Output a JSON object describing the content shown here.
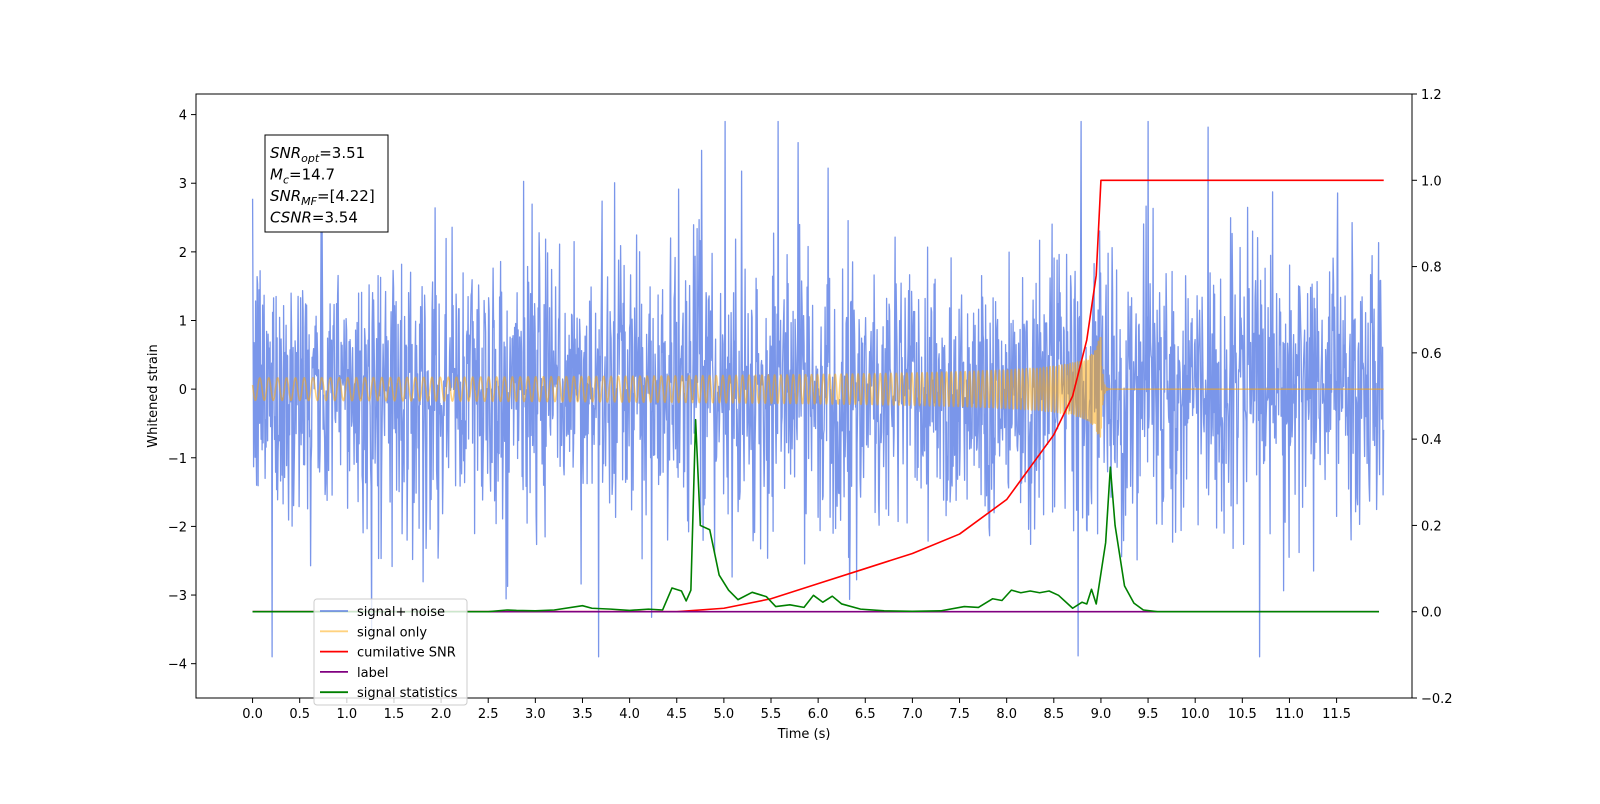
{
  "chart_data": {
    "type": "line",
    "xlabel": "Time (s)",
    "ylabel": "Whitened strain",
    "xlim": [
      -0.6,
      12.3
    ],
    "ylim": [
      -4.5,
      4.3
    ],
    "y2lim": [
      -0.2,
      1.2
    ],
    "x_ticks": [
      "0.0",
      "0.5",
      "1.0",
      "1.5",
      "2.0",
      "2.5",
      "3.0",
      "3.5",
      "4.0",
      "4.5",
      "5.0",
      "5.5",
      "6.0",
      "6.5",
      "7.0",
      "7.5",
      "8.0",
      "8.5",
      "9.0",
      "9.5",
      "10.0",
      "10.5",
      "11.0",
      "11.5"
    ],
    "y_ticks": [
      "4",
      "3",
      "2",
      "1",
      "0",
      "−1",
      "−2",
      "−3",
      "−4"
    ],
    "y2_ticks": [
      "1.2",
      "1.0",
      "0.8",
      "0.6",
      "0.4",
      "0.2",
      "0.0",
      "−0.2"
    ],
    "grid": false,
    "legend_position": "lower-left",
    "annotation": {
      "lines": [
        {
          "main": "SNR",
          "sub": "opt",
          "rest": "=3.51"
        },
        {
          "main": "M",
          "sub": "c",
          "rest": "=14.7"
        },
        {
          "main": "SNR",
          "sub": "MF",
          "rest": "=[4.22]"
        },
        {
          "main": "CSNR",
          "sub": "",
          "rest": "=3.54"
        }
      ]
    },
    "series": [
      {
        "name": "signal+ noise",
        "color": "#4169e1",
        "alpha": 0.7,
        "kind": "noise",
        "x_range": [
          0,
          12
        ],
        "std": 1.0,
        "y_range": [
          -3.9,
          3.9
        ]
      },
      {
        "name": "signal only",
        "color": "#ffa500",
        "alpha": 0.5,
        "kind": "chirp",
        "x_range": [
          0,
          12
        ],
        "merger_x": 9.0,
        "peak_amplitude": 0.75
      },
      {
        "name": "cumilative SNR",
        "color": "#ff0000",
        "axis": "right",
        "points": [
          [
            0,
            0
          ],
          [
            4.5,
            0
          ],
          [
            5.0,
            0.008
          ],
          [
            5.5,
            0.03
          ],
          [
            6.0,
            0.065
          ],
          [
            6.5,
            0.1
          ],
          [
            7.0,
            0.135
          ],
          [
            7.5,
            0.18
          ],
          [
            8.0,
            0.26
          ],
          [
            8.5,
            0.41
          ],
          [
            8.7,
            0.5
          ],
          [
            8.85,
            0.63
          ],
          [
            8.95,
            0.78
          ],
          [
            9.0,
            1.0
          ],
          [
            12,
            1.0
          ]
        ]
      },
      {
        "name": "label",
        "color": "#800080",
        "axis": "right",
        "points": [
          [
            0,
            0
          ],
          [
            11.95,
            0
          ]
        ]
      },
      {
        "name": "signal statistics",
        "color": "#008000",
        "axis": "right",
        "points": [
          [
            0,
            0
          ],
          [
            2.5,
            0
          ],
          [
            2.7,
            0.004
          ],
          [
            2.8,
            0.003
          ],
          [
            3.0,
            0.002
          ],
          [
            3.2,
            0.004
          ],
          [
            3.5,
            0.014
          ],
          [
            3.6,
            0.008
          ],
          [
            3.8,
            0.006
          ],
          [
            4.0,
            0.003
          ],
          [
            4.2,
            0.006
          ],
          [
            4.35,
            0.004
          ],
          [
            4.45,
            0.055
          ],
          [
            4.55,
            0.048
          ],
          [
            4.6,
            0.025
          ],
          [
            4.65,
            0.05
          ],
          [
            4.7,
            0.445
          ],
          [
            4.75,
            0.2
          ],
          [
            4.85,
            0.19
          ],
          [
            4.95,
            0.085
          ],
          [
            5.05,
            0.05
          ],
          [
            5.15,
            0.028
          ],
          [
            5.3,
            0.045
          ],
          [
            5.45,
            0.035
          ],
          [
            5.55,
            0.012
          ],
          [
            5.7,
            0.016
          ],
          [
            5.85,
            0.01
          ],
          [
            5.95,
            0.038
          ],
          [
            6.05,
            0.022
          ],
          [
            6.15,
            0.036
          ],
          [
            6.25,
            0.018
          ],
          [
            6.45,
            0.006
          ],
          [
            6.7,
            0.002
          ],
          [
            7.0,
            0.001
          ],
          [
            7.3,
            0.002
          ],
          [
            7.55,
            0.012
          ],
          [
            7.7,
            0.01
          ],
          [
            7.85,
            0.03
          ],
          [
            7.95,
            0.026
          ],
          [
            8.05,
            0.05
          ],
          [
            8.15,
            0.044
          ],
          [
            8.25,
            0.048
          ],
          [
            8.35,
            0.044
          ],
          [
            8.45,
            0.048
          ],
          [
            8.55,
            0.038
          ],
          [
            8.7,
            0.008
          ],
          [
            8.8,
            0.022
          ],
          [
            8.85,
            0.018
          ],
          [
            8.9,
            0.052
          ],
          [
            8.95,
            0.018
          ],
          [
            9.05,
            0.16
          ],
          [
            9.1,
            0.335
          ],
          [
            9.15,
            0.2
          ],
          [
            9.25,
            0.06
          ],
          [
            9.35,
            0.02
          ],
          [
            9.45,
            0.004
          ],
          [
            9.6,
            0
          ],
          [
            11.95,
            0
          ]
        ]
      }
    ]
  }
}
